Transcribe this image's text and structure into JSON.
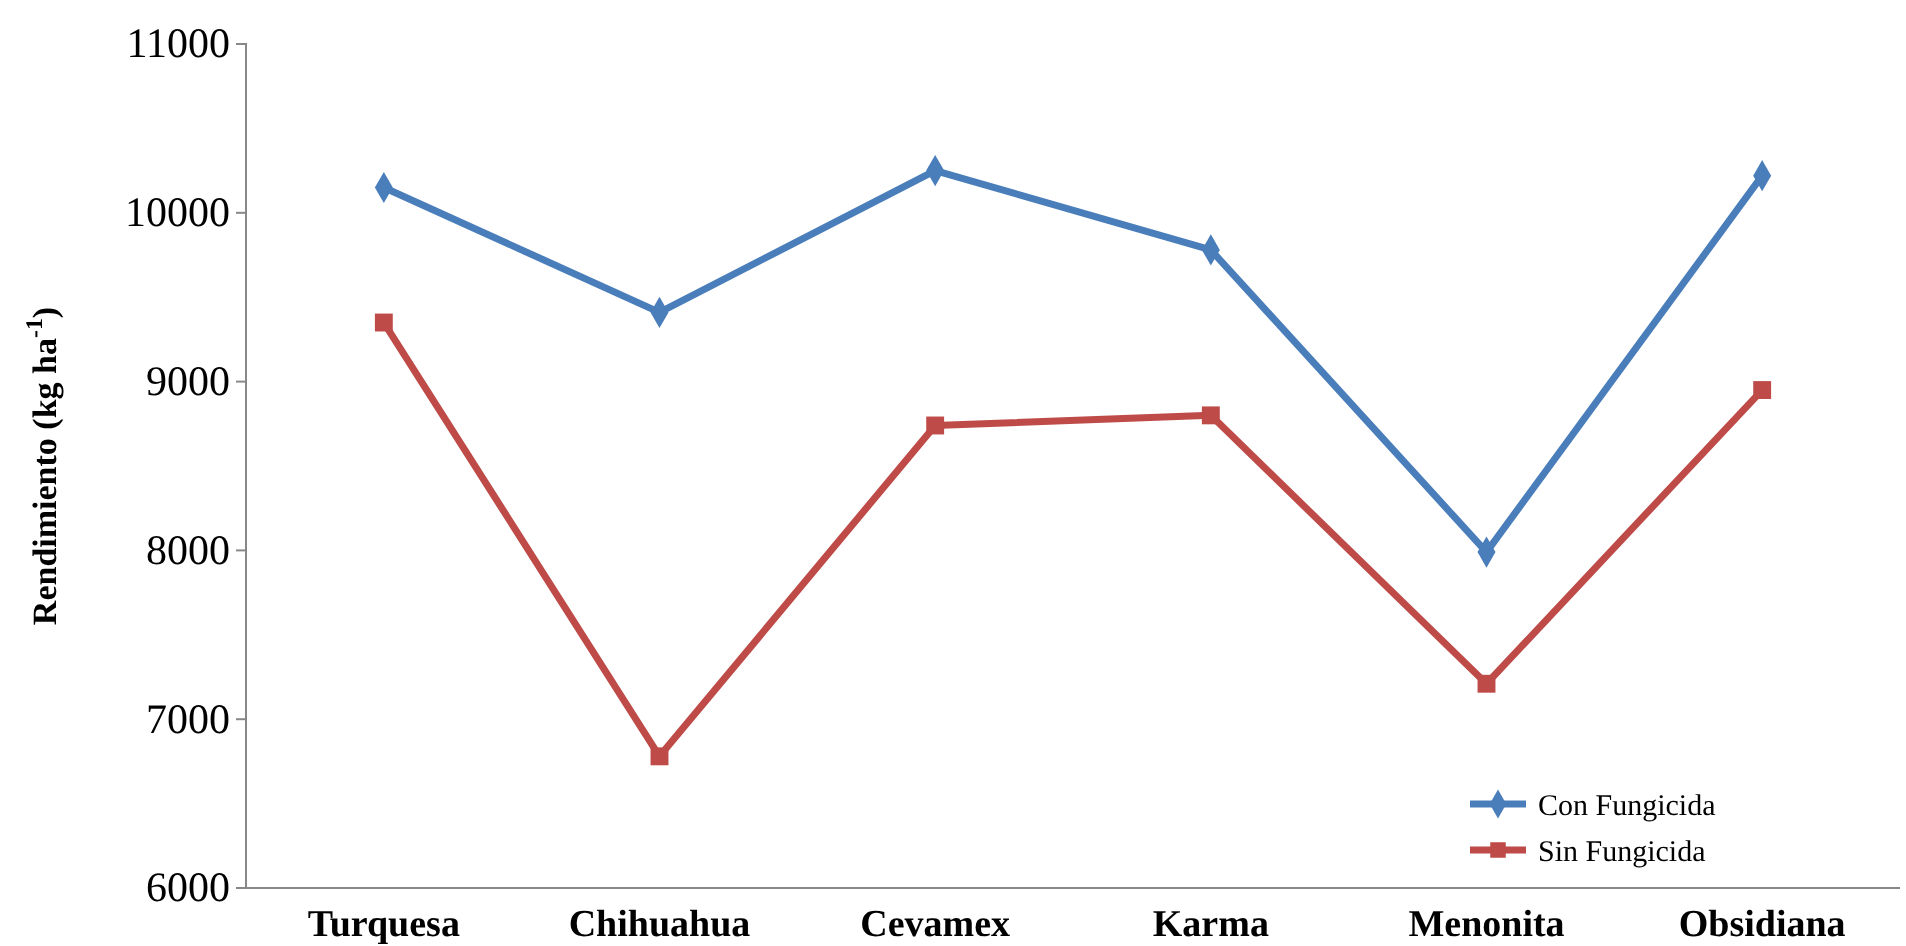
{
  "chart_data": {
    "type": "line",
    "ylabel": "Rendimiento (kg ha$^{-1}$)",
    "categories": [
      "Turquesa",
      "Chihuahua",
      "Cevamex",
      "Karma",
      "Menonita",
      "Obsidiana"
    ],
    "series": [
      {
        "name": "Con Fungicida",
        "color": "#4a7ebb",
        "marker": "diamond",
        "values": [
          10150,
          9410,
          10250,
          9780,
          7990,
          10220
        ]
      },
      {
        "name": "Sin Fungicida",
        "color": "#be4b48",
        "marker": "square",
        "values": [
          9350,
          6780,
          8740,
          8800,
          7210,
          8950
        ]
      }
    ],
    "ylim": [
      6000,
      11000
    ],
    "yticks": [
      6000,
      7000,
      8000,
      9000,
      10000,
      11000
    ],
    "grid": false,
    "legend": "bottom right",
    "line_style": "solid"
  }
}
